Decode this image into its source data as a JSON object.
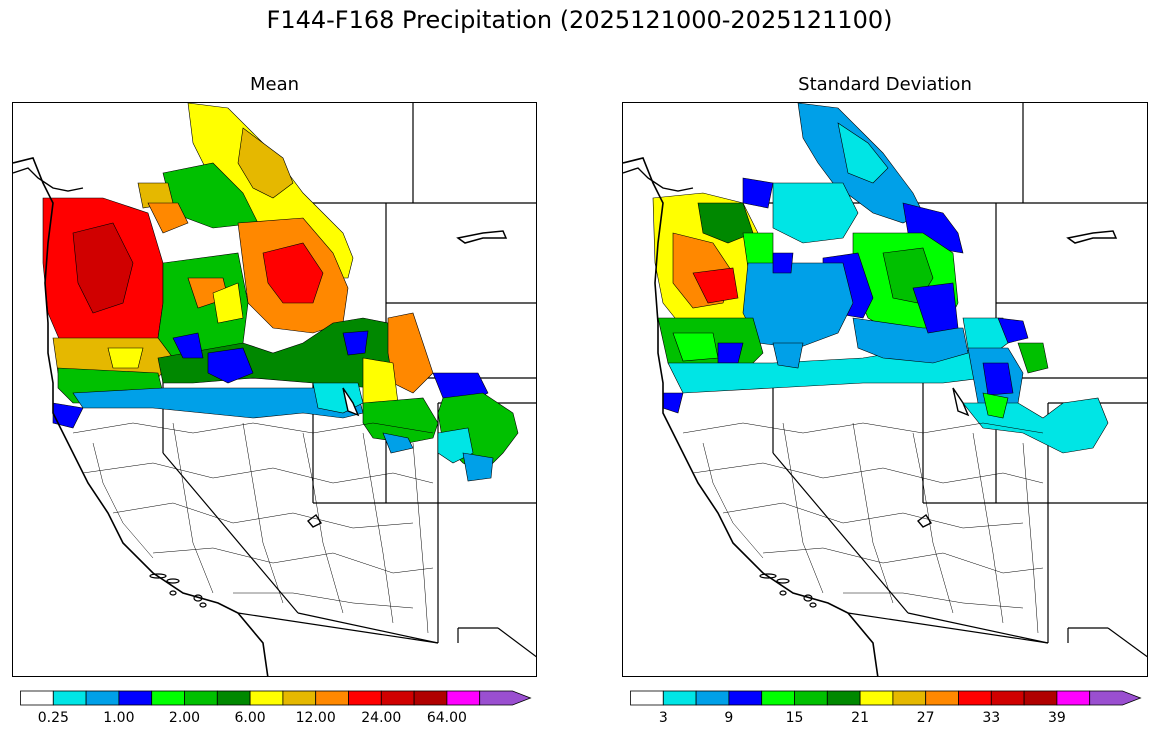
{
  "title": "F144-F168 Precipitation (2025121000-2025121100)",
  "panels": [
    {
      "id": "mean",
      "title": "Mean",
      "colorbar": {
        "colors": [
          "#ffffff",
          "#00e5e5",
          "#00a0e8",
          "#0000ff",
          "#00ff00",
          "#00c000",
          "#008800",
          "#ffff00",
          "#e5b800",
          "#ff8800",
          "#ff0000",
          "#d00000",
          "#b00000",
          "#ff00ff",
          "#9a4fd0"
        ],
        "tick_labels": [
          "0.25",
          "1.00",
          "2.00",
          "6.00",
          "12.00",
          "24.00",
          "64.00"
        ],
        "extend": "max"
      }
    },
    {
      "id": "stddev",
      "title": "Standard Deviation",
      "colorbar": {
        "colors": [
          "#ffffff",
          "#00e5e5",
          "#00a0e8",
          "#0000ff",
          "#00ff00",
          "#00c000",
          "#008800",
          "#ffff00",
          "#e5b800",
          "#ff8800",
          "#ff0000",
          "#d00000",
          "#b00000",
          "#ff00ff",
          "#9a4fd0"
        ],
        "tick_labels": [
          "3",
          "9",
          "15",
          "21",
          "27",
          "33",
          "39"
        ],
        "extend": "max"
      }
    }
  ]
}
